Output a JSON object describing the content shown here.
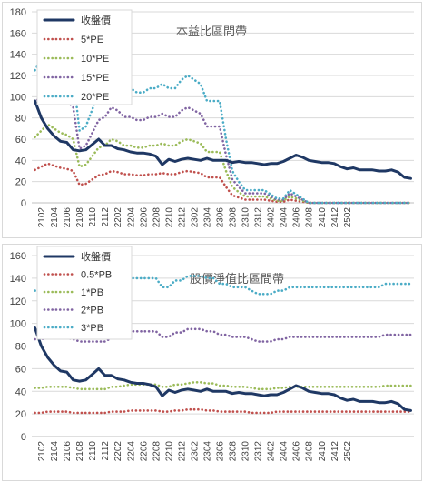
{
  "chart_data": [
    {
      "type": "line",
      "title": "本益比區間帶",
      "xlabel": "",
      "ylabel": "",
      "ylim": [
        0,
        180
      ],
      "yticks": [
        0,
        20,
        40,
        60,
        80,
        100,
        120,
        140,
        160,
        180
      ],
      "x_tick_labels": [
        "2102",
        "2104",
        "2106",
        "2108",
        "2110",
        "2112",
        "2202",
        "2204",
        "2206",
        "2208",
        "2210",
        "2212",
        "2302",
        "2304",
        "2306",
        "2308",
        "2310",
        "2312",
        "2402",
        "2404",
        "2406",
        "2408",
        "2410",
        "2412",
        "2502"
      ],
      "grid": true,
      "legend_position": "top-left",
      "series": [
        {
          "name": "收盤價",
          "color": "#1f3864",
          "style": "solid",
          "values": [
            96,
            80,
            70,
            63,
            58,
            57,
            50,
            49,
            50,
            55,
            60,
            54,
            54,
            51,
            50,
            48,
            47,
            47,
            46,
            44,
            36,
            41,
            39,
            41,
            42,
            41,
            40,
            42,
            40,
            40,
            40,
            38,
            39,
            38,
            38,
            37,
            36,
            37,
            37,
            39,
            42,
            45,
            43,
            40,
            39,
            38,
            38,
            37,
            34,
            32,
            33,
            31,
            31,
            31,
            30,
            30,
            31,
            29,
            24,
            23
          ]
        },
        {
          "name": "5*PE",
          "color": "#c0504d",
          "style": "dotted",
          "values": [
            31,
            34,
            37,
            35,
            33,
            32,
            30,
            17,
            18,
            22,
            26,
            27,
            30,
            29,
            27,
            27,
            26,
            26,
            27,
            27,
            28,
            27,
            27,
            29,
            30,
            29,
            28,
            24,
            24,
            24,
            15,
            7,
            5,
            3,
            3,
            3,
            3,
            2,
            1,
            1,
            3,
            2,
            1,
            0,
            0,
            0,
            0,
            0,
            0,
            0,
            0,
            0,
            0,
            0,
            0,
            0,
            0,
            0,
            0,
            0
          ]
        },
        {
          "name": "10*PE",
          "color": "#9bbb59",
          "style": "dotted",
          "values": [
            62,
            68,
            74,
            70,
            66,
            64,
            60,
            34,
            36,
            44,
            52,
            54,
            60,
            58,
            54,
            54,
            52,
            52,
            54,
            54,
            56,
            54,
            54,
            58,
            60,
            58,
            56,
            48,
            48,
            48,
            30,
            15,
            10,
            6,
            6,
            6,
            6,
            4,
            2,
            2,
            6,
            4,
            2,
            0,
            0,
            0,
            0,
            0,
            0,
            0,
            0,
            0,
            0,
            0,
            0,
            0,
            0,
            0,
            0,
            0
          ]
        },
        {
          "name": "15*PE",
          "color": "#8064a2",
          "style": "dotted",
          "values": [
            94,
            102,
            110,
            105,
            99,
            96,
            90,
            51,
            54,
            66,
            78,
            81,
            90,
            87,
            81,
            81,
            78,
            78,
            81,
            81,
            84,
            81,
            81,
            87,
            90,
            87,
            84,
            72,
            72,
            72,
            45,
            22,
            15,
            9,
            9,
            9,
            9,
            6,
            3,
            3,
            9,
            6,
            3,
            0,
            0,
            0,
            0,
            0,
            0,
            0,
            0,
            0,
            0,
            0,
            0,
            0,
            0,
            0,
            0,
            0
          ]
        },
        {
          "name": "20*PE",
          "color": "#4bacc6",
          "style": "dotted",
          "values": [
            125,
            135,
            145,
            140,
            132,
            128,
            120,
            68,
            72,
            88,
            104,
            108,
            120,
            116,
            108,
            108,
            104,
            104,
            108,
            108,
            112,
            108,
            108,
            116,
            120,
            116,
            112,
            96,
            96,
            96,
            60,
            30,
            20,
            12,
            12,
            12,
            12,
            8,
            4,
            4,
            12,
            8,
            4,
            0,
            0,
            0,
            0,
            0,
            0,
            0,
            0,
            0,
            0,
            0,
            0,
            0,
            0,
            0,
            0,
            0
          ]
        }
      ]
    },
    {
      "type": "line",
      "title": "股價淨值比區間帶",
      "xlabel": "",
      "ylabel": "",
      "ylim": [
        0,
        160
      ],
      "yticks": [
        0,
        20,
        40,
        60,
        80,
        100,
        120,
        140,
        160
      ],
      "x_tick_labels": [
        "2102",
        "2104",
        "2106",
        "2108",
        "2110",
        "2112",
        "2202",
        "2204",
        "2206",
        "2208",
        "2210",
        "2212",
        "2302",
        "2304",
        "2306",
        "2308",
        "2310",
        "2312",
        "2402",
        "2404",
        "2406",
        "2408",
        "2410",
        "2412",
        "2502"
      ],
      "grid": true,
      "legend_position": "top-left",
      "series": [
        {
          "name": "收盤價",
          "color": "#1f3864",
          "style": "solid",
          "values": [
            96,
            80,
            70,
            63,
            58,
            57,
            50,
            49,
            50,
            55,
            60,
            54,
            54,
            51,
            50,
            48,
            47,
            47,
            46,
            44,
            36,
            41,
            39,
            41,
            42,
            41,
            40,
            42,
            40,
            40,
            40,
            38,
            39,
            38,
            38,
            37,
            36,
            37,
            37,
            39,
            42,
            45,
            43,
            40,
            39,
            38,
            38,
            37,
            34,
            32,
            33,
            31,
            31,
            31,
            30,
            30,
            31,
            29,
            24,
            23
          ]
        },
        {
          "name": "0.5*PB",
          "color": "#c0504d",
          "style": "dotted",
          "values": [
            21,
            21,
            22,
            22,
            22,
            22,
            21,
            21,
            21,
            21,
            21,
            21,
            22,
            22,
            22,
            23,
            23,
            23,
            23,
            23,
            22,
            22,
            23,
            23,
            24,
            24,
            24,
            23,
            23,
            22,
            22,
            22,
            22,
            22,
            21,
            21,
            21,
            21,
            22,
            22,
            22,
            22,
            22,
            22,
            22,
            22,
            22,
            22,
            22,
            22,
            22,
            22,
            22,
            22,
            22,
            22,
            22,
            22,
            22,
            22
          ]
        },
        {
          "name": "1*PB",
          "color": "#9bbb59",
          "style": "dotted",
          "values": [
            43,
            43,
            44,
            44,
            44,
            44,
            43,
            42,
            42,
            42,
            42,
            42,
            44,
            44,
            45,
            46,
            46,
            46,
            46,
            46,
            44,
            44,
            46,
            46,
            47,
            48,
            48,
            47,
            47,
            45,
            45,
            44,
            44,
            44,
            43,
            42,
            42,
            42,
            43,
            43,
            44,
            44,
            44,
            44,
            44,
            44,
            44,
            44,
            44,
            44,
            44,
            44,
            44,
            44,
            44,
            45,
            45,
            45,
            45,
            45
          ]
        },
        {
          "name": "2*PB",
          "color": "#8064a2",
          "style": "dotted",
          "values": [
            86,
            86,
            87,
            87,
            87,
            87,
            86,
            84,
            84,
            84,
            84,
            84,
            87,
            87,
            90,
            93,
            93,
            93,
            93,
            93,
            88,
            88,
            92,
            92,
            95,
            95,
            95,
            93,
            93,
            90,
            90,
            88,
            88,
            88,
            86,
            84,
            84,
            84,
            86,
            86,
            88,
            88,
            88,
            88,
            88,
            88,
            88,
            88,
            88,
            88,
            88,
            88,
            88,
            88,
            88,
            90,
            90,
            90,
            90,
            90
          ]
        },
        {
          "name": "3*PB",
          "color": "#4bacc6",
          "style": "dotted",
          "values": [
            129,
            129,
            131,
            131,
            131,
            131,
            129,
            126,
            126,
            126,
            126,
            126,
            131,
            131,
            135,
            140,
            140,
            140,
            140,
            140,
            132,
            132,
            138,
            138,
            142,
            142,
            142,
            140,
            140,
            135,
            135,
            132,
            132,
            132,
            129,
            126,
            126,
            126,
            129,
            129,
            132,
            132,
            132,
            132,
            132,
            132,
            132,
            132,
            132,
            132,
            132,
            132,
            132,
            132,
            132,
            135,
            135,
            135,
            135,
            135
          ]
        }
      ]
    }
  ]
}
